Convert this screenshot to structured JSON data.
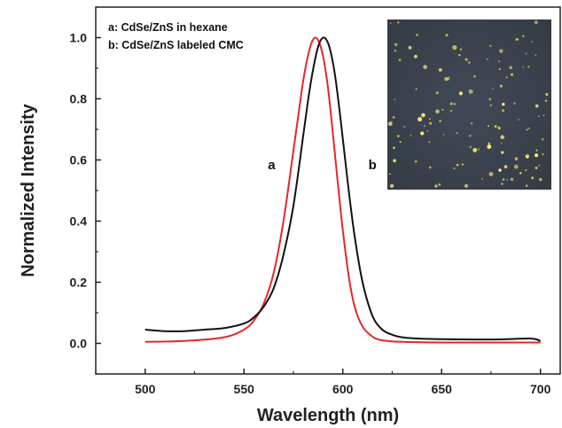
{
  "chart_data": {
    "type": "line",
    "xlabel": "Wavelength (nm)",
    "ylabel": "Normalized Intensity",
    "xlim": [
      475,
      710
    ],
    "ylim": [
      -0.1,
      1.1
    ],
    "xticks": [
      500,
      550,
      600,
      650,
      700
    ],
    "xtick_labels": [
      "500",
      "550",
      "600",
      "650",
      "700"
    ],
    "yticks": [
      0.0,
      0.2,
      0.4,
      0.6,
      0.8,
      1.0
    ],
    "ytick_labels": [
      "0.0",
      "0.2",
      "0.4",
      "0.6",
      "0.8",
      "1.0"
    ],
    "grid": false,
    "legend": [
      "a: CdSe/ZnS in hexane",
      "b: CdSe/ZnS labeled CMC"
    ],
    "legend_position": "top-left",
    "inset": "fluorescence micrograph",
    "series": [
      {
        "name": "a",
        "color": "#e8262b",
        "x": [
          500,
          520,
          540,
          550,
          555,
          560,
          565,
          570,
          575,
          578,
          580,
          582,
          584,
          586,
          588,
          590,
          592,
          594,
          596,
          598,
          600,
          603,
          606,
          610,
          615,
          620,
          630,
          650,
          675,
          700
        ],
        "y": [
          0.005,
          0.008,
          0.02,
          0.045,
          0.075,
          0.13,
          0.23,
          0.4,
          0.63,
          0.77,
          0.86,
          0.93,
          0.98,
          1.0,
          0.985,
          0.94,
          0.86,
          0.75,
          0.62,
          0.49,
          0.37,
          0.22,
          0.12,
          0.055,
          0.022,
          0.01,
          0.005,
          0.003,
          0.003,
          0.003
        ]
      },
      {
        "name": "b",
        "color": "#111111",
        "x": [
          500,
          510,
          520,
          530,
          540,
          550,
          555,
          560,
          565,
          570,
          575,
          580,
          583,
          586,
          588,
          590,
          592,
          594,
          596,
          598,
          600,
          603,
          606,
          610,
          615,
          620,
          625,
          630,
          640,
          660,
          680,
          695,
          700
        ],
        "y": [
          0.045,
          0.04,
          0.04,
          0.045,
          0.05,
          0.065,
          0.085,
          0.12,
          0.18,
          0.29,
          0.45,
          0.68,
          0.82,
          0.93,
          0.98,
          1.0,
          0.99,
          0.95,
          0.88,
          0.78,
          0.67,
          0.5,
          0.35,
          0.2,
          0.09,
          0.045,
          0.028,
          0.02,
          0.015,
          0.013,
          0.013,
          0.016,
          0.008
        ]
      }
    ],
    "annotations": [
      {
        "text": "a",
        "x": 564,
        "y": 0.57
      },
      {
        "text": "b",
        "x": 615,
        "y": 0.57
      }
    ]
  }
}
